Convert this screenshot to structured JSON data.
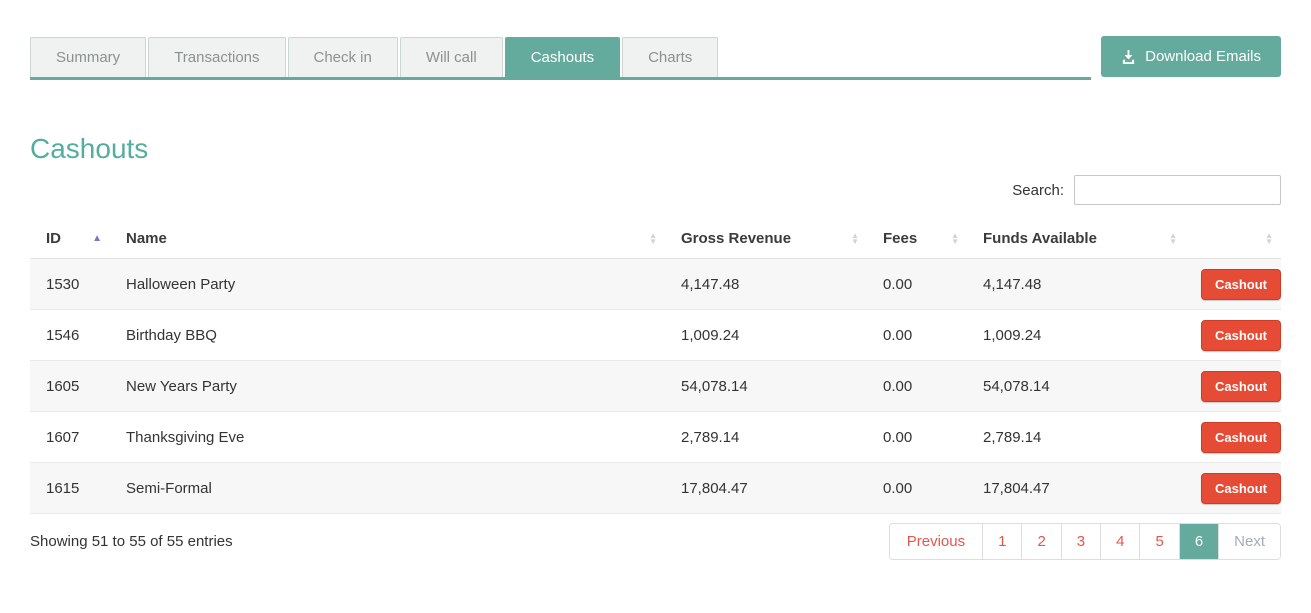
{
  "tabs": [
    {
      "label": "Summary",
      "active": false
    },
    {
      "label": "Transactions",
      "active": false
    },
    {
      "label": "Check in",
      "active": false
    },
    {
      "label": "Will call",
      "active": false
    },
    {
      "label": "Cashouts",
      "active": true
    },
    {
      "label": "Charts",
      "active": false
    }
  ],
  "download_button": {
    "label": "Download Emails",
    "icon": "download-icon"
  },
  "page_title": "Cashouts",
  "search": {
    "label": "Search:",
    "value": "",
    "placeholder": ""
  },
  "table": {
    "columns": [
      {
        "label": "ID",
        "sort": "asc"
      },
      {
        "label": "Name",
        "sort": "none"
      },
      {
        "label": "Gross Revenue",
        "sort": "none"
      },
      {
        "label": "Fees",
        "sort": "none"
      },
      {
        "label": "Funds Available",
        "sort": "none"
      },
      {
        "label": "",
        "sort": "none"
      }
    ],
    "rows": [
      {
        "id": "1530",
        "name": "Halloween Party",
        "gross_revenue": "4,147.48",
        "fees": "0.00",
        "funds_available": "4,147.48",
        "action_label": "Cashout"
      },
      {
        "id": "1546",
        "name": "Birthday BBQ",
        "gross_revenue": "1,009.24",
        "fees": "0.00",
        "funds_available": "1,009.24",
        "action_label": "Cashout"
      },
      {
        "id": "1605",
        "name": "New Years Party",
        "gross_revenue": "54,078.14",
        "fees": "0.00",
        "funds_available": "54,078.14",
        "action_label": "Cashout"
      },
      {
        "id": "1607",
        "name": "Thanksgiving Eve",
        "gross_revenue": "2,789.14",
        "fees": "0.00",
        "funds_available": "2,789.14",
        "action_label": "Cashout"
      },
      {
        "id": "1615",
        "name": "Semi-Formal",
        "gross_revenue": "17,804.47",
        "fees": "0.00",
        "funds_available": "17,804.47",
        "action_label": "Cashout"
      }
    ]
  },
  "footer": {
    "showing_text": "Showing 51 to 55 of 55 entries"
  },
  "pagination": {
    "previous_label": "Previous",
    "pages": [
      "1",
      "2",
      "3",
      "4",
      "5",
      "6"
    ],
    "active_page": "6",
    "next_label": "Next",
    "next_disabled": true
  },
  "colors": {
    "accent_teal": "#65ab9d",
    "heading_teal": "#54ae9f",
    "cashout_red": "#e64b35",
    "pagination_red": "#e2574d",
    "sort_active_blue": "#7577d1"
  }
}
